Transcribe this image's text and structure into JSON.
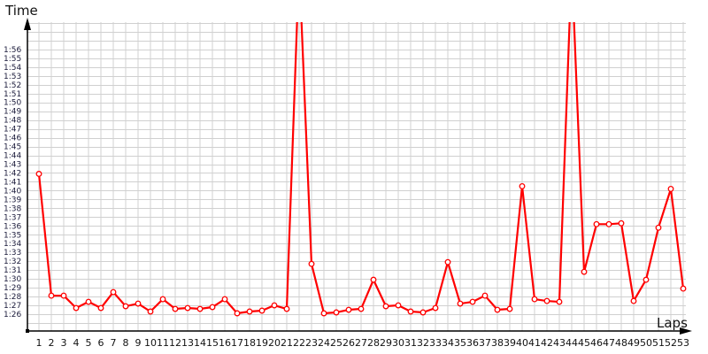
{
  "chart_data": {
    "type": "line",
    "ylabel": "Time",
    "xlabel": "Laps",
    "y_unit": "seconds",
    "y_tick_labels": [
      "1:26",
      "1:27",
      "1:28",
      "1:29",
      "1:30",
      "1:31",
      "1:32",
      "1:33",
      "1:34",
      "1:35",
      "1:36",
      "1:37",
      "1:38",
      "1:39",
      "1:40",
      "1:41",
      "1:42",
      "1:43",
      "1:44",
      "1:45",
      "1:46",
      "1:47",
      "1:48",
      "1:49",
      "1:50",
      "1:51",
      "1:52",
      "1:53",
      "1:54",
      "1:55",
      "1:56"
    ],
    "ylim": [
      84,
      119
    ],
    "grid": true,
    "color": "#ff0000",
    "x": [
      1,
      2,
      3,
      4,
      5,
      6,
      7,
      8,
      9,
      10,
      11,
      12,
      13,
      14,
      15,
      16,
      17,
      18,
      19,
      20,
      21,
      22,
      23,
      24,
      25,
      26,
      27,
      28,
      29,
      30,
      31,
      32,
      33,
      34,
      35,
      36,
      37,
      38,
      39,
      40,
      41,
      42,
      43,
      44,
      45,
      46,
      47,
      48,
      49,
      50,
      51,
      52,
      53
    ],
    "values": [
      101.9,
      88.1,
      88.1,
      86.7,
      87.4,
      86.7,
      88.5,
      86.9,
      87.2,
      86.3,
      87.7,
      86.6,
      86.7,
      86.6,
      86.8,
      87.7,
      86.1,
      86.3,
      86.4,
      87.0,
      86.6,
      null,
      91.7,
      86.1,
      86.2,
      86.5,
      86.6,
      89.9,
      86.9,
      87.0,
      86.3,
      86.2,
      86.7,
      91.9,
      87.2,
      87.4,
      88.1,
      86.5,
      86.6,
      100.5,
      87.7,
      87.5,
      87.4,
      null,
      90.8,
      96.2,
      96.2,
      96.3,
      87.5,
      89.9,
      95.8,
      100.2,
      88.9
    ],
    "note_null": "above chart range"
  }
}
